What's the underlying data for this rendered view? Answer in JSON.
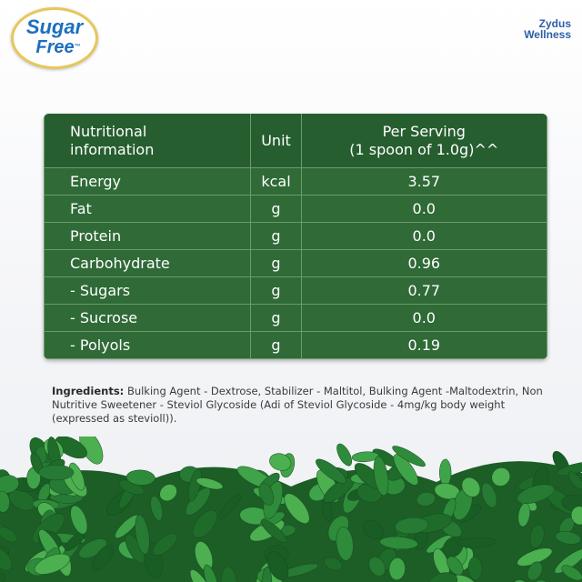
{
  "logo": {
    "line1": "Sugar",
    "line2": "Free",
    "mark": "™"
  },
  "brand": {
    "line1": "Zydus",
    "line2": "Wellness"
  },
  "table": {
    "header": [
      [
        "Nutritional",
        "information"
      ],
      [
        "Unit"
      ],
      [
        "Per Serving",
        "(1 spoon of 1.0g)^^"
      ]
    ],
    "rows": [
      [
        "Energy",
        "kcal",
        "3.57"
      ],
      [
        "Fat",
        "g",
        "0.0"
      ],
      [
        "Protein",
        "g",
        "0.0"
      ],
      [
        "Carbohydrate",
        "g",
        "0.96"
      ],
      [
        "- Sugars",
        "g",
        "0.77"
      ],
      [
        "- Sucrose",
        "g",
        "0.0"
      ],
      [
        "- Polyols",
        "g",
        "0.19"
      ]
    ]
  },
  "ingredients": {
    "label": "Ingredients:",
    "text": "Bulking Agent - Dextrose, Stabilizer - Maltitol, Bulking Agent -Maltodextrin, Non Nutritive Sweetener - Steviol Glycoside (Adi of Steviol Glycoside - 4mg/kg body weight (expressed as stevioll))."
  }
}
